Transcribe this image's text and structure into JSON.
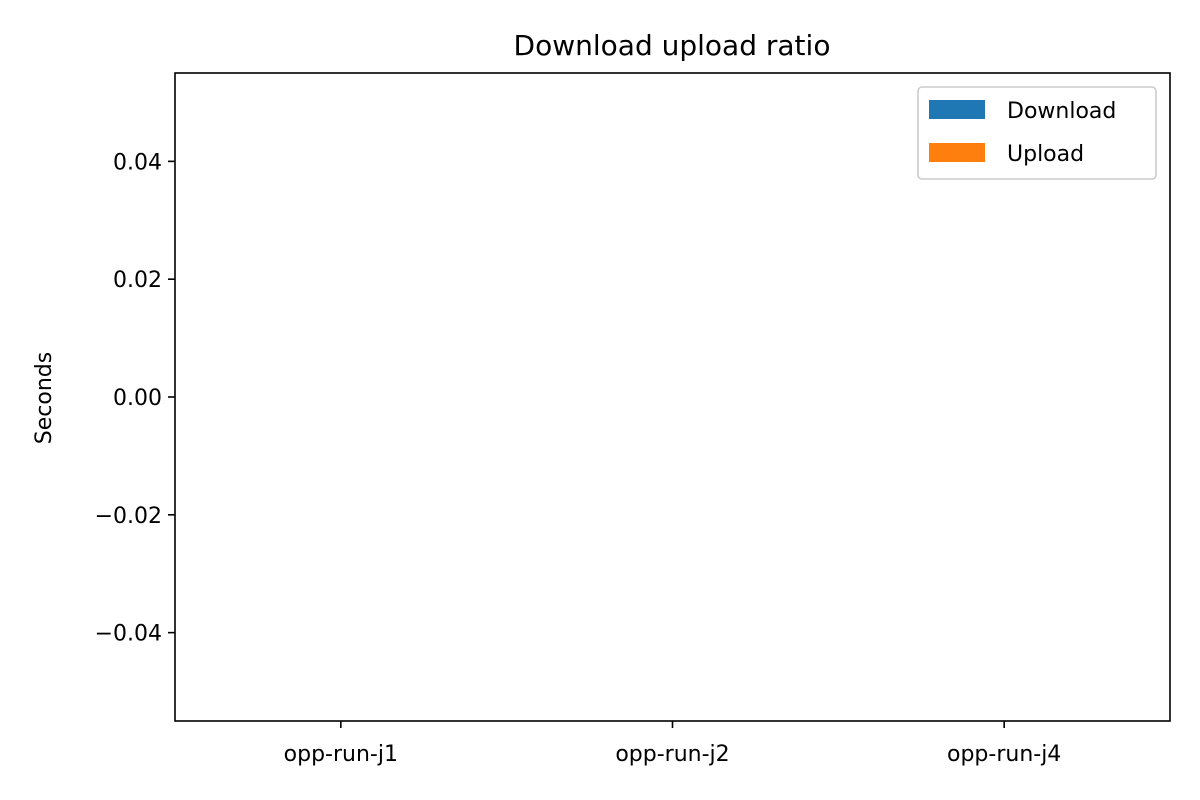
{
  "chart_data": {
    "type": "bar",
    "title": "Download upload ratio",
    "xlabel": "",
    "ylabel": "Seconds",
    "categories": [
      "opp-run-j1",
      "opp-run-j2",
      "opp-run-j4"
    ],
    "series": [
      {
        "name": "Download",
        "values": [
          0,
          0,
          0
        ],
        "color": "#1f77b4"
      },
      {
        "name": "Upload",
        "values": [
          0,
          0,
          0
        ],
        "color": "#ff7f0e"
      }
    ],
    "ylim": [
      -0.055,
      0.055
    ],
    "yticks": [
      -0.04,
      -0.02,
      0.0,
      0.02,
      0.04
    ],
    "ytick_labels": [
      "−0.04",
      "−0.02",
      "0.00",
      "0.02",
      "0.04"
    ],
    "grid": false,
    "legend_position": "top-right"
  }
}
